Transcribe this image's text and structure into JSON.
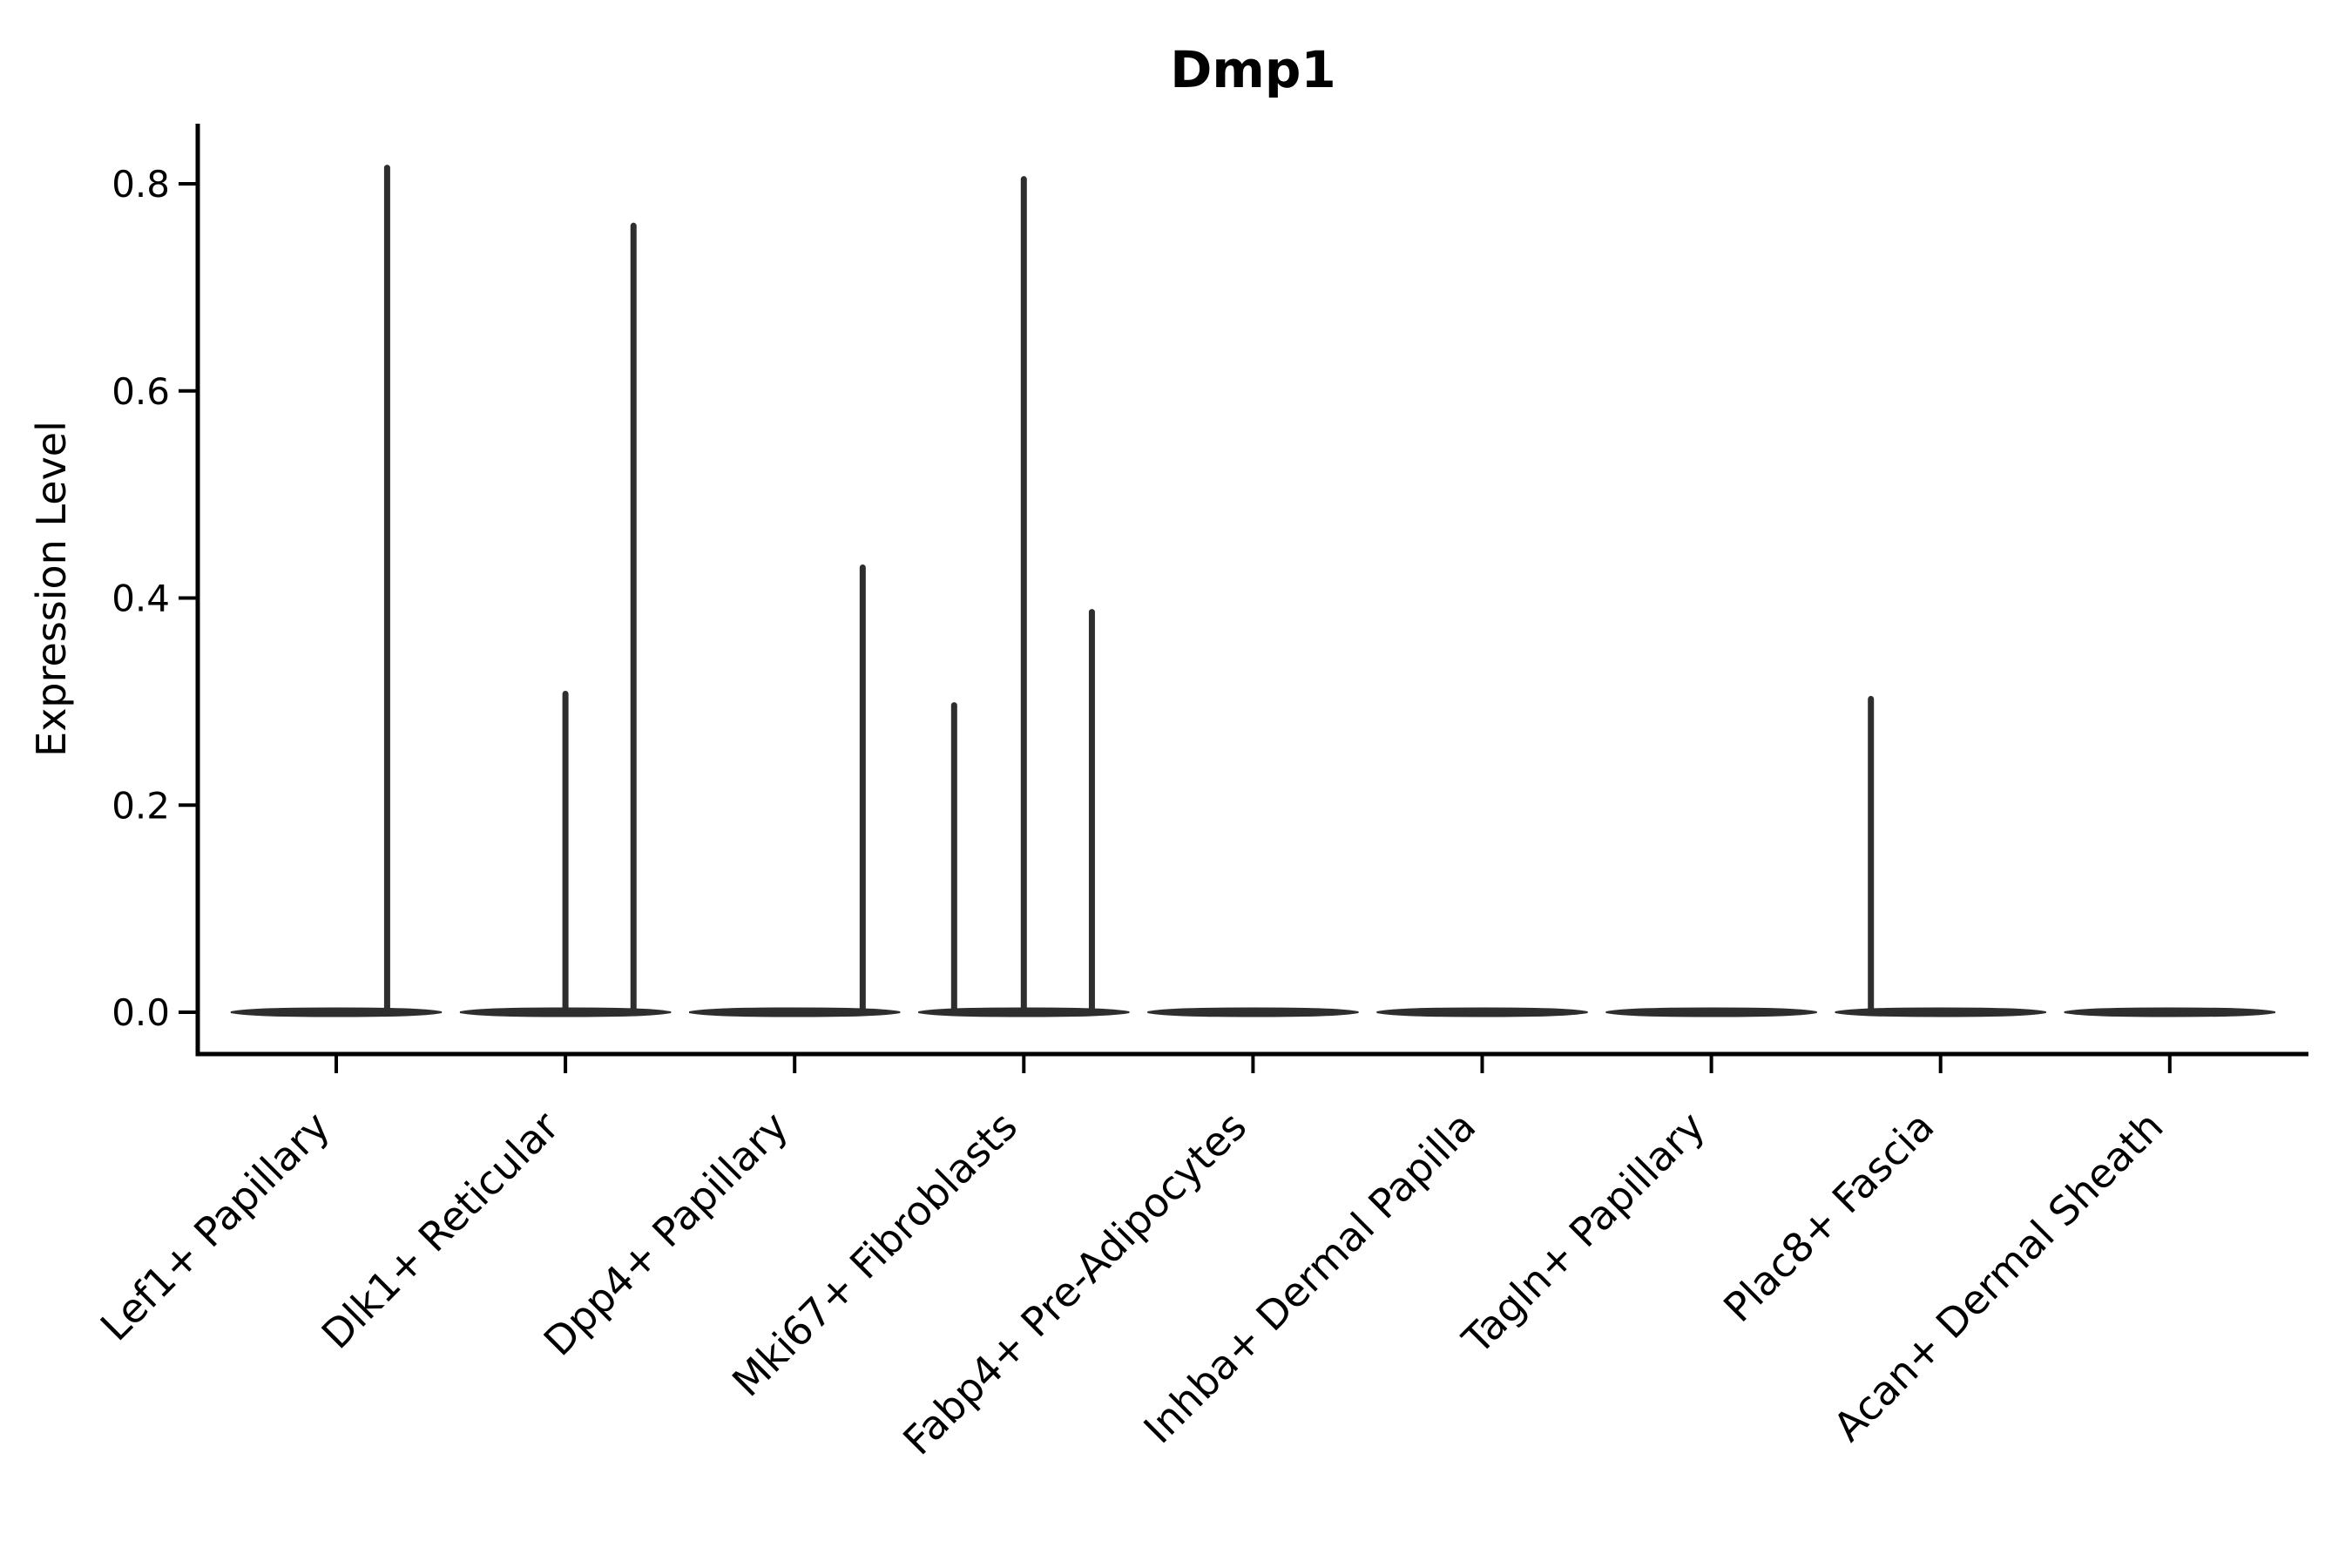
{
  "chart_data": {
    "type": "violin",
    "title": "Dmp1",
    "ylabel": "Expression Level",
    "xlabel": "",
    "y_tick_labels": [
      "0.0",
      "0.2",
      "0.4",
      "0.6",
      "0.8"
    ],
    "y_tick_values": [
      0.0,
      0.2,
      0.4,
      0.6,
      0.8
    ],
    "ylim": [
      -0.039,
      0.858
    ],
    "grid": false,
    "legend": "none",
    "x_tick_rotation_deg": 45,
    "categories": [
      "Lef1+ Papillary",
      "Dlk1+ Reticular",
      "Dpp4+ Papillary",
      "Mki67+ Fibroblasts",
      "Fabp4+ Pre-Adipocytes",
      "Inhba+ Dermal Papilla",
      "Tagln+ Papillary",
      "Plac8+ Fascia",
      "Acan+ Dermal Sheath"
    ],
    "series": [
      {
        "name": "Lef1+ Papillary",
        "baseline_value": 0.0,
        "spikes": [
          {
            "offset": 0.222,
            "value": 0.818
          }
        ]
      },
      {
        "name": "Dlk1+ Reticular",
        "baseline_value": 0.0,
        "spikes": [
          {
            "offset": 0.0,
            "value": 0.31
          },
          {
            "offset": 0.297,
            "value": 0.762
          }
        ]
      },
      {
        "name": "Dpp4+ Papillary",
        "baseline_value": 0.0,
        "spikes": [
          {
            "offset": 0.297,
            "value": 0.432
          }
        ]
      },
      {
        "name": "Mki67+ Fibroblasts",
        "baseline_value": 0.0,
        "spikes": [
          {
            "offset": -0.304,
            "value": 0.299
          },
          {
            "offset": 0.0,
            "value": 0.807
          },
          {
            "offset": 0.297,
            "value": 0.389
          }
        ]
      },
      {
        "name": "Fabp4+ Pre-Adipocytes",
        "baseline_value": 0.0,
        "spikes": []
      },
      {
        "name": "Inhba+ Dermal Papilla",
        "baseline_value": 0.0,
        "spikes": []
      },
      {
        "name": "Tagln+ Papillary",
        "baseline_value": 0.0,
        "spikes": []
      },
      {
        "name": "Plac8+ Fascia",
        "baseline_value": 0.0,
        "spikes": [
          {
            "offset": -0.304,
            "value": 0.305
          }
        ]
      },
      {
        "name": "Acan+ Dermal Sheath",
        "baseline_value": 0.0,
        "spikes": []
      }
    ],
    "colors": {
      "violin": "#2e2e2e",
      "axis": "#000000",
      "text": "#000000",
      "background": "#ffffff"
    }
  }
}
